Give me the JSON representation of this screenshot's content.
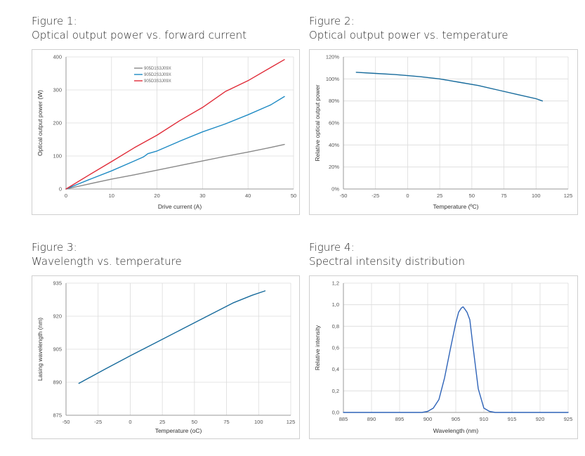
{
  "figures": [
    {
      "label": "Figure 1:",
      "title": "Optical output power vs. forward current"
    },
    {
      "label": "Figure 2:",
      "title": "Optical output power vs. temperature"
    },
    {
      "label": "Figure 3:",
      "title": "Wavelength vs. temperature"
    },
    {
      "label": "Figure 4:",
      "title": "Spectral intensity distribution"
    }
  ],
  "chart_data": [
    {
      "type": "line",
      "title": "Optical output power vs. forward current",
      "xlabel": "Drive current (A)",
      "ylabel": "Optical output power (W)",
      "xlim": [
        0,
        50
      ],
      "ylim": [
        0,
        400
      ],
      "xticks": [
        0,
        10,
        20,
        30,
        40,
        50
      ],
      "yticks": [
        0,
        100,
        200,
        300,
        400
      ],
      "grid": true,
      "legend": "top-left",
      "series": [
        {
          "name": "905D1S3J09X",
          "color": "#888888",
          "x": [
            0,
            5,
            10,
            15,
            20,
            25,
            30,
            35,
            40,
            45,
            48
          ],
          "y": [
            0,
            15,
            30,
            43,
            57,
            71,
            85,
            99,
            112,
            126,
            135
          ]
        },
        {
          "name": "905D2S3J09X",
          "color": "#1f8bc4",
          "x": [
            0,
            5,
            10,
            15,
            17,
            18,
            20,
            25,
            30,
            35,
            40,
            45,
            48
          ],
          "y": [
            0,
            28,
            55,
            85,
            97,
            107,
            115,
            145,
            173,
            197,
            225,
            255,
            280
          ]
        },
        {
          "name": "905D3S3J09X",
          "color": "#e02b38",
          "x": [
            0,
            5,
            10,
            15,
            20,
            25,
            30,
            35,
            40,
            45,
            48
          ],
          "y": [
            0,
            42,
            83,
            125,
            163,
            207,
            247,
            295,
            328,
            368,
            392
          ]
        }
      ]
    },
    {
      "type": "line",
      "title": "Optical output power vs. temperature",
      "xlabel": "Temperature (ºC)",
      "ylabel": "Relative optical output power",
      "xlim": [
        -50,
        125
      ],
      "ylim": [
        0,
        120
      ],
      "xticks": [
        "-50",
        "-25",
        "0",
        "25",
        "50",
        "75",
        "100",
        "125"
      ],
      "yticks": [
        "0%",
        "20%",
        "40%",
        "60%",
        "80%",
        "100%",
        "120%"
      ],
      "grid": true,
      "series": [
        {
          "color": "#176b9c",
          "x": [
            -40,
            -25,
            -10,
            0,
            10,
            25,
            40,
            55,
            70,
            85,
            100,
            105
          ],
          "y": [
            106,
            105,
            104,
            103,
            102,
            100,
            97,
            94,
            90,
            86,
            82,
            80
          ]
        }
      ]
    },
    {
      "type": "line",
      "title": "Wavelength vs. temperature",
      "xlabel": "Temperature (oC)",
      "ylabel": "Lasing wavelength (nm)",
      "xlim": [
        -50,
        125
      ],
      "ylim": [
        875,
        935
      ],
      "xticks": [
        "-50",
        "-25",
        "0",
        "25",
        "50",
        "75",
        "100",
        "125"
      ],
      "yticks": [
        "875",
        "890",
        "905",
        "920",
        "935"
      ],
      "grid": true,
      "series": [
        {
          "color": "#176b9c",
          "x": [
            -40,
            -20,
            0,
            20,
            40,
            60,
            80,
            95,
            105
          ],
          "y": [
            889.5,
            895.8,
            902.0,
            908.0,
            914.0,
            920.0,
            926.0,
            929.5,
            931.5
          ]
        }
      ]
    },
    {
      "type": "line",
      "title": "Spectral intensity distribution",
      "xlabel": "Wavelength (nm)",
      "ylabel": "Relative intensity",
      "xlim": [
        885,
        925
      ],
      "ylim": [
        0,
        1.2
      ],
      "xticks": [
        "885",
        "890",
        "895",
        "900",
        "905",
        "910",
        "915",
        "920",
        "925"
      ],
      "yticks": [
        "0,0",
        "0,2",
        "0,4",
        "0,6",
        "0,8",
        "1,0",
        "1,2"
      ],
      "grid": true,
      "series": [
        {
          "color": "#2e63b8",
          "x": [
            885,
            890,
            895,
            899,
            900,
            901,
            902,
            903,
            904,
            905,
            905.5,
            906,
            906.3,
            906.6,
            907,
            907.5,
            908,
            909,
            910,
            911,
            912,
            915,
            920,
            925
          ],
          "y": [
            0.0,
            0.0,
            0.0,
            0.0,
            0.01,
            0.04,
            0.12,
            0.32,
            0.58,
            0.83,
            0.93,
            0.97,
            0.98,
            0.96,
            0.93,
            0.86,
            0.64,
            0.22,
            0.04,
            0.01,
            0.0,
            0.0,
            0.0,
            0.0
          ]
        }
      ]
    }
  ]
}
